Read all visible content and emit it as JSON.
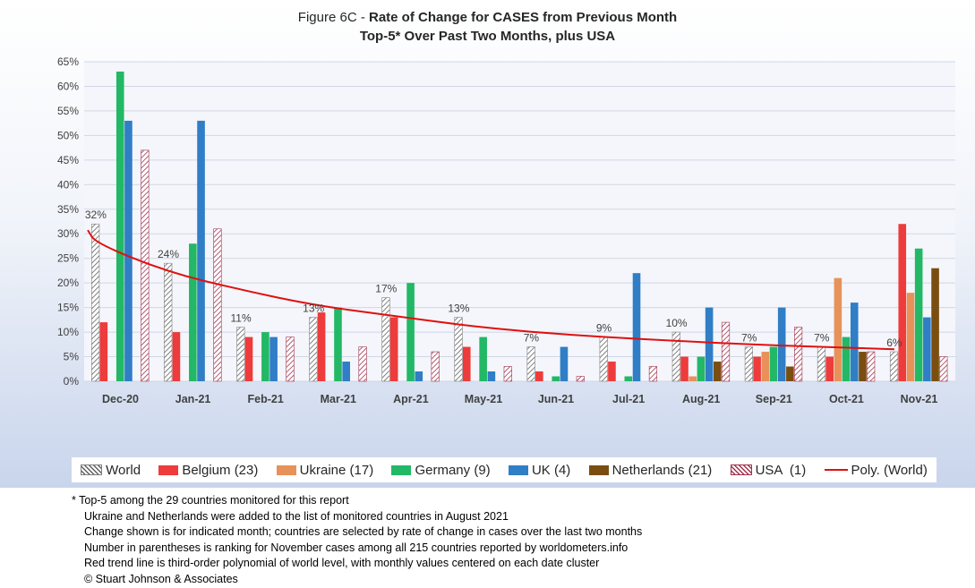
{
  "title": {
    "prefix": "Figure 6C - ",
    "main": "Rate of Change for CASES from Previous Month",
    "line2": "Top-5* Over Past Two Months, plus USA"
  },
  "colors": {
    "World": "#a6a6a6",
    "Belgium (23)": "#ee3b3b",
    "Ukraine (17)": "#e8925a",
    "Germany (9)": "#22b866",
    "UK (4)": "#2f7ec6",
    "Netherlands (21)": "#7a4e10",
    "USA  (1)": "#a0324d",
    "trend": "#e01010",
    "grid": "#d0d7e6"
  },
  "chart_data": {
    "type": "bar",
    "categories": [
      "Dec-20",
      "Jan-21",
      "Feb-21",
      "Mar-21",
      "Apr-21",
      "May-21",
      "Jun-21",
      "Jul-21",
      "Aug-21",
      "Sep-21",
      "Oct-21",
      "Nov-21"
    ],
    "series": [
      {
        "name": "World",
        "pattern": "diagonal-hatch",
        "values": [
          32,
          24,
          11,
          13,
          17,
          13,
          7,
          9,
          10,
          7,
          7,
          6
        ]
      },
      {
        "name": "Belgium (23)",
        "values": [
          12,
          10,
          9,
          14,
          13,
          7,
          2,
          4,
          5,
          5,
          5,
          32
        ]
      },
      {
        "name": "Ukraine (17)",
        "values": [
          null,
          null,
          null,
          null,
          null,
          null,
          null,
          null,
          1,
          6,
          21,
          18
        ]
      },
      {
        "name": "Germany (9)",
        "values": [
          63,
          28,
          10,
          15,
          20,
          9,
          1,
          1,
          5,
          7,
          9,
          27
        ]
      },
      {
        "name": "UK (4)",
        "values": [
          53,
          53,
          9,
          4,
          2,
          2,
          7,
          22,
          15,
          15,
          16,
          13
        ]
      },
      {
        "name": "Netherlands (21)",
        "values": [
          null,
          null,
          null,
          null,
          null,
          null,
          null,
          null,
          4,
          3,
          6,
          23
        ]
      },
      {
        "name": "USA  (1)",
        "pattern": "diagonal-hatch",
        "values": [
          47,
          31,
          9,
          7,
          6,
          3,
          1,
          3,
          12,
          11,
          6,
          5
        ]
      }
    ],
    "data_labels": [
      "32%",
      "24%",
      "11%",
      "13%",
      "17%",
      "13%",
      "7%",
      "9%",
      "10%",
      "7%",
      "7%",
      "6%"
    ],
    "trendline": {
      "name": "Poly. (World)",
      "type": "polynomial-3",
      "values": [
        28.1,
        22.2,
        18.6,
        15.5,
        13.5,
        11.5,
        10.0,
        9.0,
        8.2,
        7.5,
        7.0,
        6.5
      ]
    },
    "y_ticks": [
      "0%",
      "5%",
      "10%",
      "15%",
      "20%",
      "25%",
      "30%",
      "35%",
      "40%",
      "45%",
      "50%",
      "55%",
      "60%",
      "65%"
    ],
    "ylim": [
      0,
      65
    ],
    "grid": true,
    "legend_position": "bottom"
  },
  "legend": [
    "World",
    "Belgium (23)",
    "Ukraine (17)",
    "Germany (9)",
    "UK (4)",
    "Netherlands (21)",
    "USA  (1)",
    "Poly. (World)"
  ],
  "footnote": {
    "line1": "* Top-5 among the 29 countries monitored for this report",
    "line2": "Ukraine and Netherlands were added to the list of monitored countries in August 2021",
    "line3": "Change shown is for indicated month; countries are selected by rate of change in cases over the last two months",
    "line4": "Number in parentheses is ranking for November cases among all 215 countries reported by worldometers.info",
    "line5": "Red trend line is third-order polynomial of world level, with monthly values centered on each date cluster",
    "line6": "© Stuart Johnson & Associates"
  }
}
